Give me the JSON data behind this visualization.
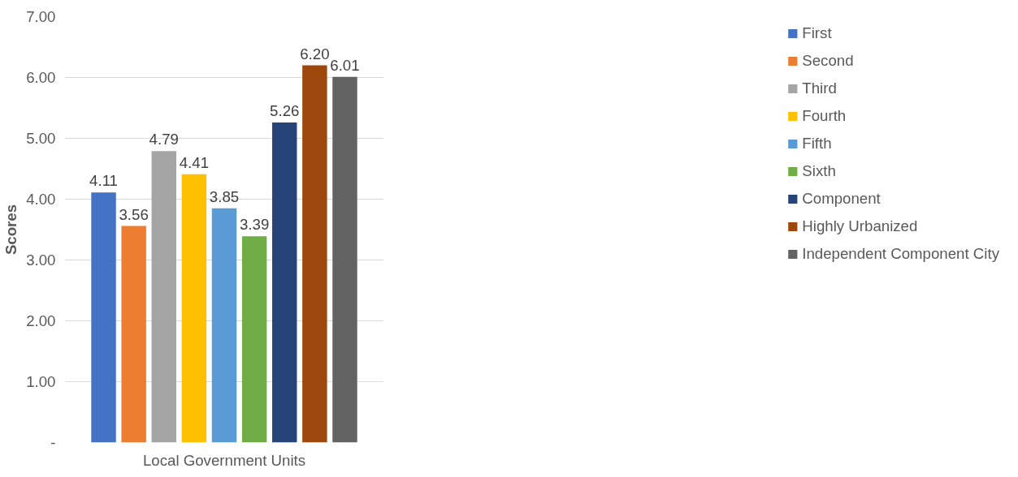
{
  "chart_data": {
    "type": "bar",
    "xlabel": "Local Government Units",
    "ylabel": "Scores",
    "categories": [
      null
    ],
    "ylim": [
      0,
      7
    ],
    "yticks": [
      {
        "value": 0,
        "label": "-"
      },
      {
        "value": 1,
        "label": "1.00"
      },
      {
        "value": 2,
        "label": "2.00"
      },
      {
        "value": 3,
        "label": "3.00"
      },
      {
        "value": 4,
        "label": "4.00"
      },
      {
        "value": 5,
        "label": "5.00"
      },
      {
        "value": 6,
        "label": "6.00"
      },
      {
        "value": 7,
        "label": "7.00"
      }
    ],
    "grid": "y",
    "legend": "right",
    "series": [
      {
        "name": "First",
        "color": "#4472c4",
        "values": [
          4.11
        ],
        "value_labels": [
          "4.11"
        ]
      },
      {
        "name": "Second",
        "color": "#ed7d31",
        "values": [
          3.56
        ],
        "value_labels": [
          "3.56"
        ]
      },
      {
        "name": "Third",
        "color": "#a5a5a5",
        "values": [
          4.79
        ],
        "value_labels": [
          "4.79"
        ]
      },
      {
        "name": "Fourth",
        "color": "#ffc000",
        "values": [
          4.41
        ],
        "value_labels": [
          "4.41"
        ]
      },
      {
        "name": "Fifth",
        "color": "#5b9bd5",
        "values": [
          3.85
        ],
        "value_labels": [
          "3.85"
        ]
      },
      {
        "name": "Sixth",
        "color": "#70ad47",
        "values": [
          3.39
        ],
        "value_labels": [
          "3.39"
        ]
      },
      {
        "name": "Component",
        "color": "#264478",
        "values": [
          5.26
        ],
        "value_labels": [
          "5.26"
        ]
      },
      {
        "name": "Highly Urbanized",
        "color": "#9e480e",
        "values": [
          6.2
        ],
        "value_labels": [
          "6.20"
        ]
      },
      {
        "name": "Independent Component City",
        "color": "#636363",
        "values": [
          6.01
        ],
        "value_labels": [
          "6.01"
        ]
      }
    ]
  }
}
